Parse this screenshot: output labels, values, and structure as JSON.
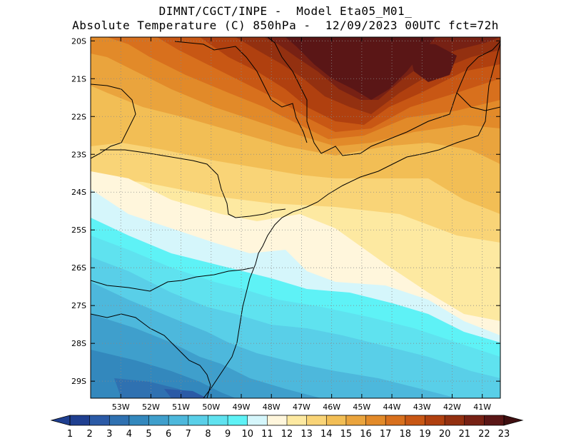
{
  "header": {
    "line1": "DIMNT/CGCT/INPE -  Model Eta05_M01_",
    "line2": "Absolute Temperature (C) 850hPa -  12/09/2023 00UTC fct=72h"
  },
  "map": {
    "lon_range": [
      -54,
      -40.4
    ],
    "lat_range": [
      -29.45,
      -19.9
    ],
    "lat_ticks": [
      {
        "value": -20,
        "label": "20S"
      },
      {
        "value": -21,
        "label": "21S"
      },
      {
        "value": -22,
        "label": "22S"
      },
      {
        "value": -23,
        "label": "23S"
      },
      {
        "value": -24,
        "label": "24S"
      },
      {
        "value": -25,
        "label": "25S"
      },
      {
        "value": -26,
        "label": "26S"
      },
      {
        "value": -27,
        "label": "27S"
      },
      {
        "value": -28,
        "label": "28S"
      },
      {
        "value": -29,
        "label": "29S"
      }
    ],
    "lon_ticks": [
      {
        "value": -53,
        "label": "53W"
      },
      {
        "value": -52,
        "label": "52W"
      },
      {
        "value": -51,
        "label": "51W"
      },
      {
        "value": -50,
        "label": "50W"
      },
      {
        "value": -49,
        "label": "49W"
      },
      {
        "value": -48,
        "label": "48W"
      },
      {
        "value": -47,
        "label": "47W"
      },
      {
        "value": -46,
        "label": "46W"
      },
      {
        "value": -45,
        "label": "45W"
      },
      {
        "value": -44,
        "label": "44W"
      },
      {
        "value": -43,
        "label": "43W"
      },
      {
        "value": -42,
        "label": "42W"
      },
      {
        "value": -41,
        "label": "41W"
      }
    ],
    "grid": "dotted"
  },
  "colorbar": {
    "labels": [
      "1",
      "2",
      "3",
      "4",
      "5",
      "6",
      "7",
      "8",
      "9",
      "10",
      "11",
      "12",
      "13",
      "14",
      "15",
      "16",
      "17",
      "18",
      "19",
      "20",
      "21",
      "22",
      "23"
    ],
    "colors": [
      "#1f3f90",
      "#2b5aa6",
      "#2f71b1",
      "#3388bd",
      "#3f9fcc",
      "#4db8dc",
      "#59cfe8",
      "#5fe2ef",
      "#5ef2f6",
      "#d5f6fb",
      "#fff6dc",
      "#fde9a1",
      "#f9d477",
      "#f2be55",
      "#eaa43d",
      "#e28a29",
      "#d8701d",
      "#c85714",
      "#b0400f",
      "#933010",
      "#772114",
      "#5a1616"
    ],
    "arrow_low": "#1f3f90",
    "arrow_high": "#3f0f10"
  }
}
